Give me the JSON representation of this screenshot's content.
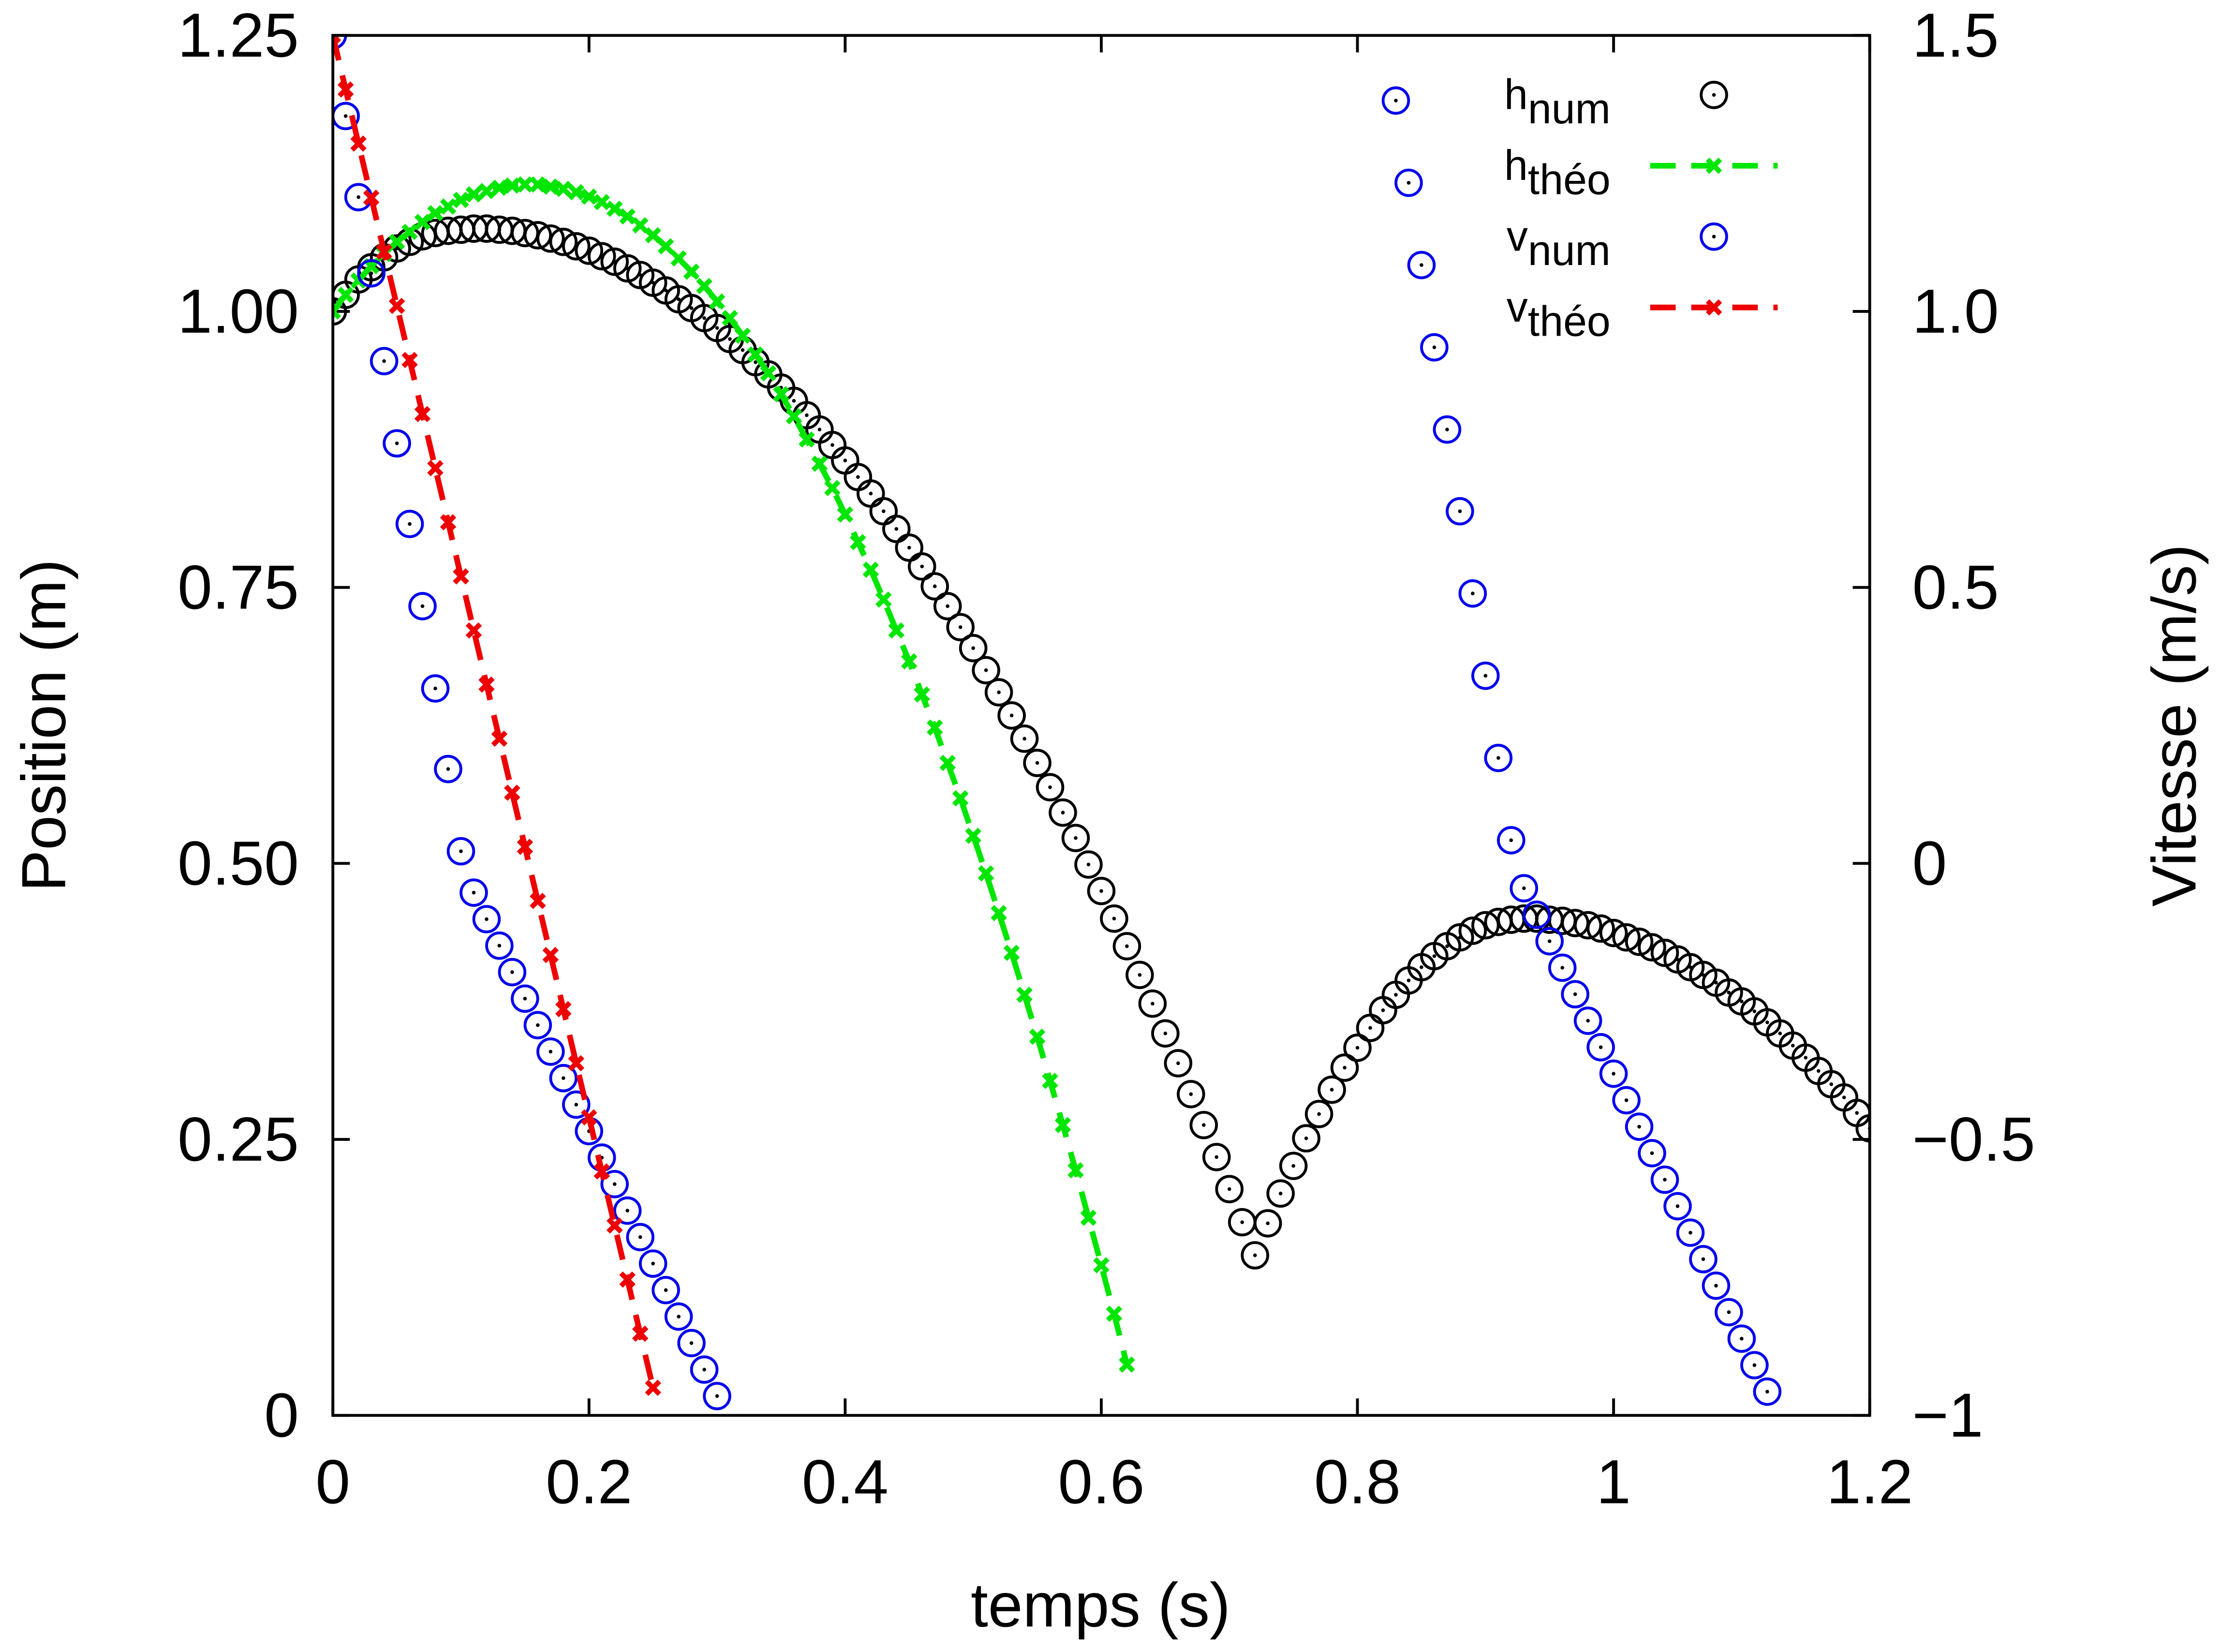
{
  "chart_data": {
    "type": "scatter",
    "xlabel": "temps (s)",
    "ylabel": "Position (m)",
    "y2label": "Vitesse (m/s)",
    "xlim": [
      0,
      1.2
    ],
    "ylim": [
      0,
      1.25
    ],
    "y2lim": [
      -1,
      1.5
    ],
    "xticks": [
      0,
      0.2,
      0.4,
      0.6,
      0.8,
      1,
      1.2
    ],
    "yticks": [
      0,
      0.25,
      {
        "value": 0.5,
        "label": "0.50"
      },
      0.75,
      {
        "value": 1,
        "label": "1.00"
      },
      1.25
    ],
    "y2ticks": [
      {
        "value": -1,
        "label": "−1"
      },
      {
        "value": -0.5,
        "label": "−0.5"
      },
      0,
      0.5,
      {
        "value": 1,
        "label": "1.0"
      },
      1.5
    ],
    "legend": "top right",
    "grid": false,
    "x": [
      0,
      0.01,
      0.02,
      0.03,
      0.04,
      0.05,
      0.06,
      0.07,
      0.08,
      0.09,
      0.1,
      0.11,
      0.12,
      0.13,
      0.14,
      0.15,
      0.16,
      0.17,
      0.18,
      0.19,
      0.2,
      0.21,
      0.22,
      0.23,
      0.24,
      0.25,
      0.26,
      0.27,
      0.28,
      0.29,
      0.3,
      0.31,
      0.32,
      0.33,
      0.34,
      0.35,
      0.36,
      0.37,
      0.38,
      0.39,
      0.4,
      0.41,
      0.42,
      0.43,
      0.44,
      0.45,
      0.46,
      0.47,
      0.48,
      0.49,
      0.5,
      0.51,
      0.52,
      0.53,
      0.54,
      0.55,
      0.56,
      0.57,
      0.58,
      0.59,
      0.6,
      0.61,
      0.62,
      0.63,
      0.64,
      0.65,
      0.66,
      0.67,
      0.68,
      0.69,
      0.7,
      0.71,
      0.72,
      0.73,
      0.74,
      0.75,
      0.76,
      0.77,
      0.78,
      0.79,
      0.8,
      0.81,
      0.82,
      0.83,
      0.84,
      0.85,
      0.86,
      0.87,
      0.88,
      0.89,
      0.9,
      0.91,
      0.92,
      0.93,
      0.94,
      0.95,
      0.96,
      0.97,
      0.98,
      0.99,
      1,
      1.01,
      1.02,
      1.03,
      1.04,
      1.05,
      1.06,
      1.07,
      1.08,
      1.09,
      1.1,
      1.11,
      1.12,
      1.13,
      1.14,
      1.15,
      1.16,
      1.17,
      1.18,
      1.19,
      1.2
    ],
    "series": [
      {
        "name": "h",
        "name_sub": "num",
        "color": "#000000",
        "marker": "circle",
        "dashed": false,
        "axis": "y",
        "values": [
          1.0,
          1.015,
          1.029,
          1.04,
          1.049,
          1.057,
          1.063,
          1.068,
          1.071,
          1.073,
          1.074,
          1.075,
          1.075,
          1.074,
          1.073,
          1.071,
          1.069,
          1.066,
          1.063,
          1.059,
          1.055,
          1.05,
          1.045,
          1.039,
          1.033,
          1.026,
          1.019,
          1.011,
          1.003,
          0.994,
          0.985,
          0.975,
          0.965,
          0.954,
          0.943,
          0.931,
          0.919,
          0.906,
          0.893,
          0.879,
          0.865,
          0.85,
          0.835,
          0.819,
          0.803,
          0.786,
          0.769,
          0.751,
          0.733,
          0.714,
          0.695,
          0.675,
          0.655,
          0.634,
          0.613,
          0.591,
          0.569,
          0.546,
          0.523,
          0.499,
          0.475,
          0.45,
          0.425,
          0.399,
          0.373,
          0.346,
          0.319,
          0.291,
          0.263,
          0.234,
          0.205,
          0.175,
          0.145,
          0.174,
          0.201,
          0.226,
          0.251,
          0.273,
          0.295,
          0.315,
          0.333,
          0.351,
          0.367,
          0.381,
          0.394,
          0.406,
          0.416,
          0.425,
          0.433,
          0.439,
          0.444,
          0.447,
          0.449,
          0.45,
          0.45,
          0.449,
          0.448,
          0.446,
          0.444,
          0.441,
          0.437,
          0.433,
          0.429,
          0.424,
          0.419,
          0.413,
          0.406,
          0.399,
          0.392,
          0.383,
          0.375,
          0.366,
          0.356,
          0.346,
          0.335,
          0.324,
          0.312,
          0.3,
          0.288,
          0.274,
          0.26
        ]
      },
      {
        "name": "h",
        "name_sub": "théo",
        "color": "#00e600",
        "marker": "cross",
        "dashed": true,
        "axis": "y",
        "values": [
          1.0,
          1.015,
          1.028,
          1.041,
          1.052,
          1.063,
          1.072,
          1.081,
          1.089,
          1.095,
          1.101,
          1.106,
          1.109,
          1.112,
          1.114,
          1.115,
          1.115,
          1.113,
          1.111,
          1.108,
          1.104,
          1.099,
          1.093,
          1.086,
          1.078,
          1.069,
          1.059,
          1.048,
          1.036,
          1.023,
          1.009,
          0.994,
          0.978,
          0.961,
          0.944,
          0.925,
          0.905,
          0.884,
          0.862,
          0.84,
          0.816,
          0.791,
          0.766,
          0.739,
          0.711,
          0.683,
          0.653,
          0.623,
          0.591,
          0.559,
          0.525,
          0.491,
          0.455,
          0.419,
          0.381,
          0.343,
          0.303,
          0.263,
          0.222,
          0.179,
          0.136,
          0.092,
          0.046,
          null,
          null,
          null,
          null,
          null,
          null,
          null,
          null,
          null,
          null,
          null,
          null,
          null,
          null,
          null,
          null,
          null,
          null,
          null,
          null,
          null,
          null,
          null,
          null,
          null,
          null,
          null,
          null,
          null,
          null,
          null,
          null,
          null,
          null,
          null,
          null,
          null,
          null,
          null,
          null,
          null,
          null,
          null,
          null,
          null,
          null,
          null,
          null,
          null,
          null,
          null,
          null,
          null,
          null,
          null,
          null,
          null,
          null
        ]
      },
      {
        "name": "v",
        "name_sub": "num",
        "color": "#0000ee",
        "marker": "circle",
        "dashed": false,
        "axis": "y2",
        "values": [
          1.5,
          1.354,
          1.207,
          1.069,
          0.91,
          0.761,
          0.615,
          0.466,
          0.317,
          0.171,
          0.022,
          -0.053,
          -0.101,
          -0.149,
          -0.197,
          -0.245,
          -0.293,
          -0.341,
          -0.389,
          -0.437,
          -0.485,
          -0.533,
          -0.581,
          -0.629,
          -0.677,
          -0.725,
          -0.773,
          -0.821,
          -0.869,
          -0.917,
          -0.965,
          null,
          null,
          null,
          null,
          null,
          null,
          null,
          null,
          null,
          null,
          null,
          null,
          null,
          null,
          null,
          null,
          null,
          null,
          null,
          null,
          null,
          null,
          null,
          null,
          null,
          null,
          null,
          null,
          null,
          null,
          null,
          null,
          null,
          null,
          null,
          null,
          null,
          null,
          null,
          null,
          null,
          null,
          null,
          null,
          null,
          null,
          null,
          null,
          null,
          null,
          null,
          null,
          1.382,
          1.233,
          1.084,
          0.935,
          0.786,
          0.638,
          0.489,
          0.34,
          0.191,
          0.042,
          -0.045,
          -0.093,
          -0.141,
          -0.189,
          -0.237,
          -0.285,
          -0.333,
          -0.381,
          -0.429,
          -0.477,
          -0.525,
          -0.573,
          -0.621,
          -0.669,
          -0.717,
          -0.765,
          -0.813,
          -0.861,
          -0.909,
          -0.957,
          null,
          null,
          null,
          null,
          null,
          null,
          null,
          null
        ]
      },
      {
        "name": "v",
        "name_sub": "théo",
        "color": "#ee0000",
        "marker": "cross",
        "dashed": true,
        "axis": "y2",
        "values": [
          1.5,
          1.402,
          1.304,
          1.206,
          1.108,
          1.01,
          0.912,
          0.814,
          0.716,
          0.618,
          0.52,
          0.422,
          0.324,
          0.226,
          0.128,
          0.03,
          -0.068,
          -0.166,
          -0.264,
          -0.362,
          -0.46,
          -0.558,
          -0.656,
          -0.754,
          -0.852,
          -0.95,
          null,
          null,
          null,
          null,
          null,
          null,
          null,
          null,
          null,
          null,
          null,
          null,
          null,
          null,
          null,
          null,
          null,
          null,
          null,
          null,
          null,
          null,
          null,
          null,
          null,
          null,
          null,
          null,
          null,
          null,
          null,
          null,
          null,
          null,
          null,
          null,
          null,
          null,
          null,
          null,
          null,
          null,
          null,
          null,
          null,
          null,
          null,
          null,
          null,
          null,
          null,
          null,
          null,
          null,
          null,
          null,
          null,
          null,
          null,
          null,
          null,
          null,
          null,
          null,
          null,
          null,
          null,
          null,
          null,
          null,
          null,
          null,
          null,
          null,
          null,
          null,
          null,
          null,
          null,
          null,
          null,
          null,
          null,
          null,
          null,
          null,
          null,
          null,
          null,
          null,
          null,
          null,
          null,
          null,
          null
        ]
      }
    ]
  }
}
